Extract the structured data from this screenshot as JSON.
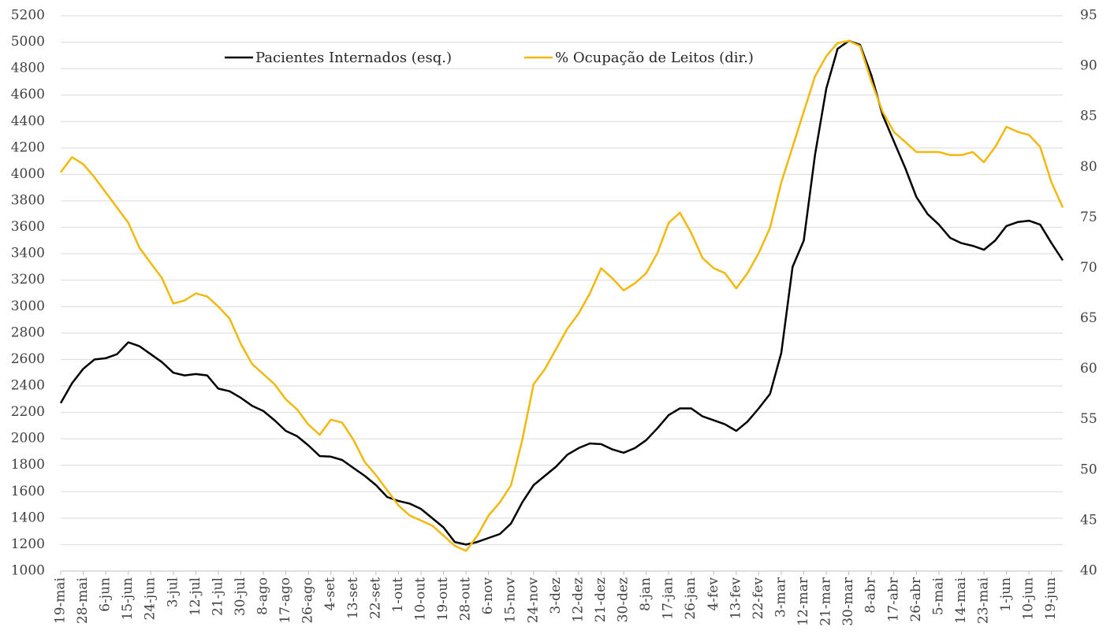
{
  "chart_data": {
    "type": "line",
    "categories": [
      "19-mai",
      null,
      "28-mai",
      null,
      "6-jun",
      null,
      "15-jun",
      null,
      "24-jun",
      null,
      "3-jul",
      null,
      "12-jul",
      null,
      "21-jul",
      null,
      "30-jul",
      null,
      "8-ago",
      null,
      "17-ago",
      null,
      "26-ago",
      null,
      "4-set",
      null,
      "13-set",
      null,
      "22-set",
      null,
      "1-out",
      null,
      "10-out",
      null,
      "19-out",
      null,
      "28-out",
      null,
      "6-nov",
      null,
      "15-nov",
      null,
      "24-nov",
      null,
      "3-dez",
      null,
      "12-dez",
      null,
      "21-dez",
      null,
      "30-dez",
      null,
      "8-jan",
      null,
      "17-jan",
      null,
      "26-jan",
      null,
      "4-fev",
      null,
      "13-fev",
      null,
      "22-fev",
      null,
      "3-mar",
      null,
      "12-mar",
      null,
      "21-mar",
      null,
      "30-mar",
      null,
      "8-abr",
      null,
      "17-abr",
      null,
      "26-abr",
      null,
      "5-mai",
      null,
      "14-mai",
      null,
      "23-mai",
      null,
      "1-jun",
      null,
      "10-jun",
      null,
      "19-jun",
      null
    ],
    "series": [
      {
        "name": "Pacientes Internados (esq.)",
        "color": "#000000",
        "values": [
          2270,
          2420,
          2530,
          2600,
          2610,
          2640,
          2730,
          2700,
          2640,
          2580,
          2500,
          2480,
          2490,
          2480,
          2380,
          2360,
          2310,
          2250,
          2210,
          2140,
          2060,
          2020,
          1950,
          1870,
          1865,
          1840,
          1780,
          1720,
          1650,
          1560,
          1530,
          1510,
          1470,
          1400,
          1330,
          1220,
          1200,
          1220,
          1250,
          1280,
          1360,
          1520,
          1650,
          1720,
          1790,
          1880,
          1930,
          1965,
          1960,
          1920,
          1895,
          1930,
          1990,
          2080,
          2180,
          2230,
          2230,
          2170,
          2140,
          2110,
          2060,
          2130,
          2230,
          2340,
          2650,
          3300,
          3500,
          4150,
          4650,
          4950,
          5010,
          4980,
          4750,
          4450,
          4250,
          4050,
          3830,
          3700,
          3620,
          3520,
          3480,
          3460,
          3430,
          3500,
          3610,
          3640,
          3650,
          3620,
          3480,
          3350
        ]
      },
      {
        "name": "% Ocupação de Leitos (dir.)",
        "color": "#f2b80c",
        "axis": "y2",
        "values": [
          79.5,
          81.0,
          80.3,
          79.0,
          77.5,
          76.0,
          74.5,
          72.0,
          70.5,
          69.0,
          66.5,
          66.8,
          67.5,
          67.2,
          66.2,
          65.0,
          62.5,
          60.5,
          59.5,
          58.5,
          57.0,
          56.0,
          54.5,
          53.5,
          55.0,
          54.7,
          53.0,
          50.8,
          49.5,
          48.0,
          46.5,
          45.5,
          45.0,
          44.5,
          43.5,
          42.5,
          42.0,
          43.5,
          45.5,
          46.8,
          48.5,
          53.0,
          58.5,
          60.0,
          62.0,
          64.0,
          65.5,
          67.5,
          70.0,
          69.0,
          67.8,
          68.5,
          69.5,
          71.5,
          74.5,
          75.5,
          73.5,
          71.0,
          70.0,
          69.5,
          68.0,
          69.5,
          71.5,
          74.0,
          78.5,
          82.0,
          85.5,
          89.0,
          91.0,
          92.3,
          92.5,
          92.0,
          88.5,
          85.5,
          83.5,
          82.5,
          81.5,
          81.5,
          81.5,
          81.2,
          81.2,
          81.5,
          80.5,
          82.0,
          84.0,
          83.5,
          83.2,
          82.0,
          78.5,
          76.0
        ]
      }
    ],
    "ylim": [
      1000,
      5200
    ],
    "yticks": [
      1000,
      1200,
      1400,
      1600,
      1800,
      2000,
      2200,
      2400,
      2600,
      2800,
      3000,
      3200,
      3400,
      3600,
      3800,
      4000,
      4200,
      4400,
      4600,
      4800,
      5000,
      5200
    ],
    "y2lim": [
      40,
      95
    ],
    "y2ticks": [
      40,
      45,
      50,
      55,
      60,
      65,
      70,
      75,
      80,
      85,
      90,
      95
    ],
    "grid": true,
    "legend": "top"
  }
}
